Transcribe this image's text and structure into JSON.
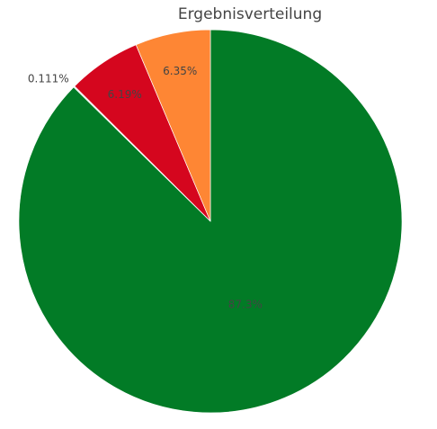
{
  "chart_data": {
    "type": "pie",
    "title": "Ergebnisverteilung",
    "slices": [
      {
        "value": 87.3,
        "label": "87.3%",
        "color": "#027b26",
        "label_color": "#444444",
        "label_position": "inside"
      },
      {
        "value": 0.111,
        "label": "0.111%",
        "color": "#e0e0e0",
        "label_color": "#444444",
        "label_position": "outside"
      },
      {
        "value": 6.19,
        "label": "6.19%",
        "color": "#d5061e",
        "label_color": "#444444",
        "label_position": "inside"
      },
      {
        "value": 6.35,
        "label": "6.35%",
        "color": "#fe8634",
        "label_color": "#444444",
        "label_position": "inside"
      }
    ],
    "direction": "clockwise",
    "start_angle": "12 o'clock",
    "legend": "none"
  }
}
